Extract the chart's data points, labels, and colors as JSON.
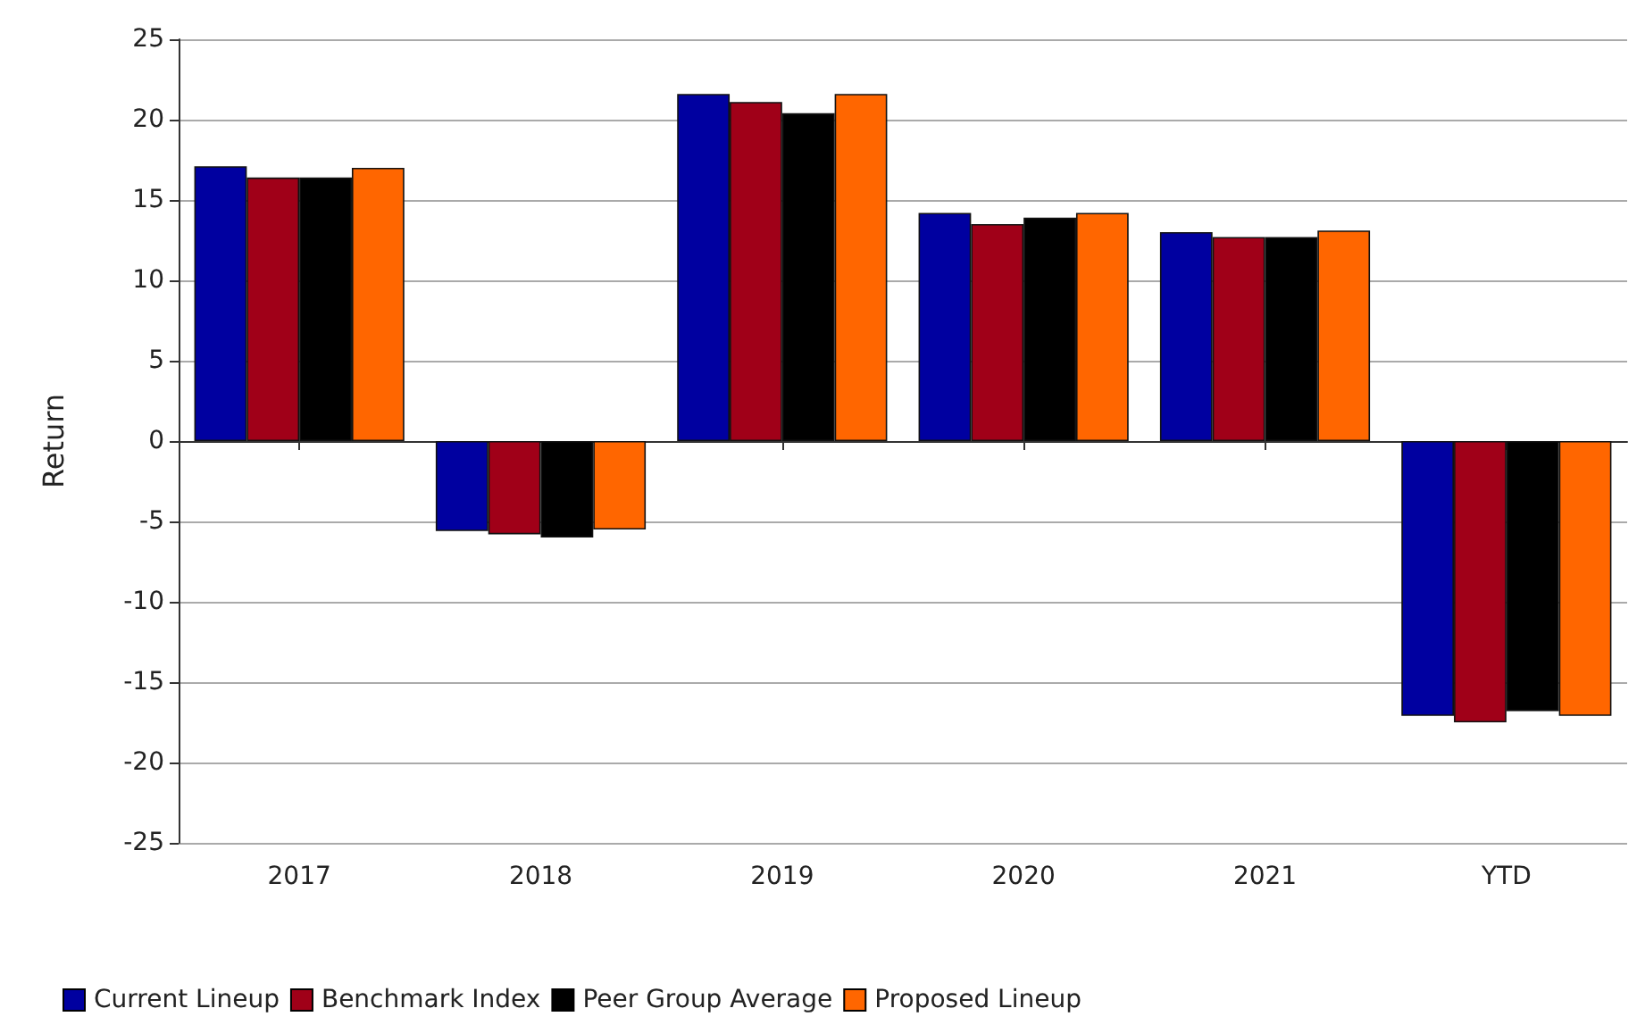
{
  "chart_data": {
    "type": "bar",
    "ylabel": "Return",
    "categories": [
      "2017",
      "2018",
      "2019",
      "2020",
      "2021",
      "YTD"
    ],
    "series": [
      {
        "name": "Current Lineup",
        "color": "#0000a0",
        "values": [
          17.1,
          -5.6,
          21.6,
          14.2,
          13.0,
          -17.1
        ]
      },
      {
        "name": "Benchmark Index",
        "color": "#a00018",
        "values": [
          16.4,
          -5.8,
          21.1,
          13.5,
          12.7,
          -17.5
        ]
      },
      {
        "name": "Peer Group Average",
        "color": "#000000",
        "values": [
          16.4,
          -6.0,
          20.4,
          13.9,
          12.7,
          -16.8
        ]
      },
      {
        "name": "Proposed Lineup",
        "color": "#ff6600",
        "values": [
          17.0,
          -5.5,
          21.6,
          14.2,
          13.1,
          -17.1
        ]
      }
    ],
    "ylim": [
      -25,
      25
    ],
    "yticks": [
      -25,
      -20,
      -15,
      -10,
      -5,
      0,
      5,
      10,
      15,
      20,
      25
    ],
    "grid": "y",
    "legend": "bottom left"
  }
}
